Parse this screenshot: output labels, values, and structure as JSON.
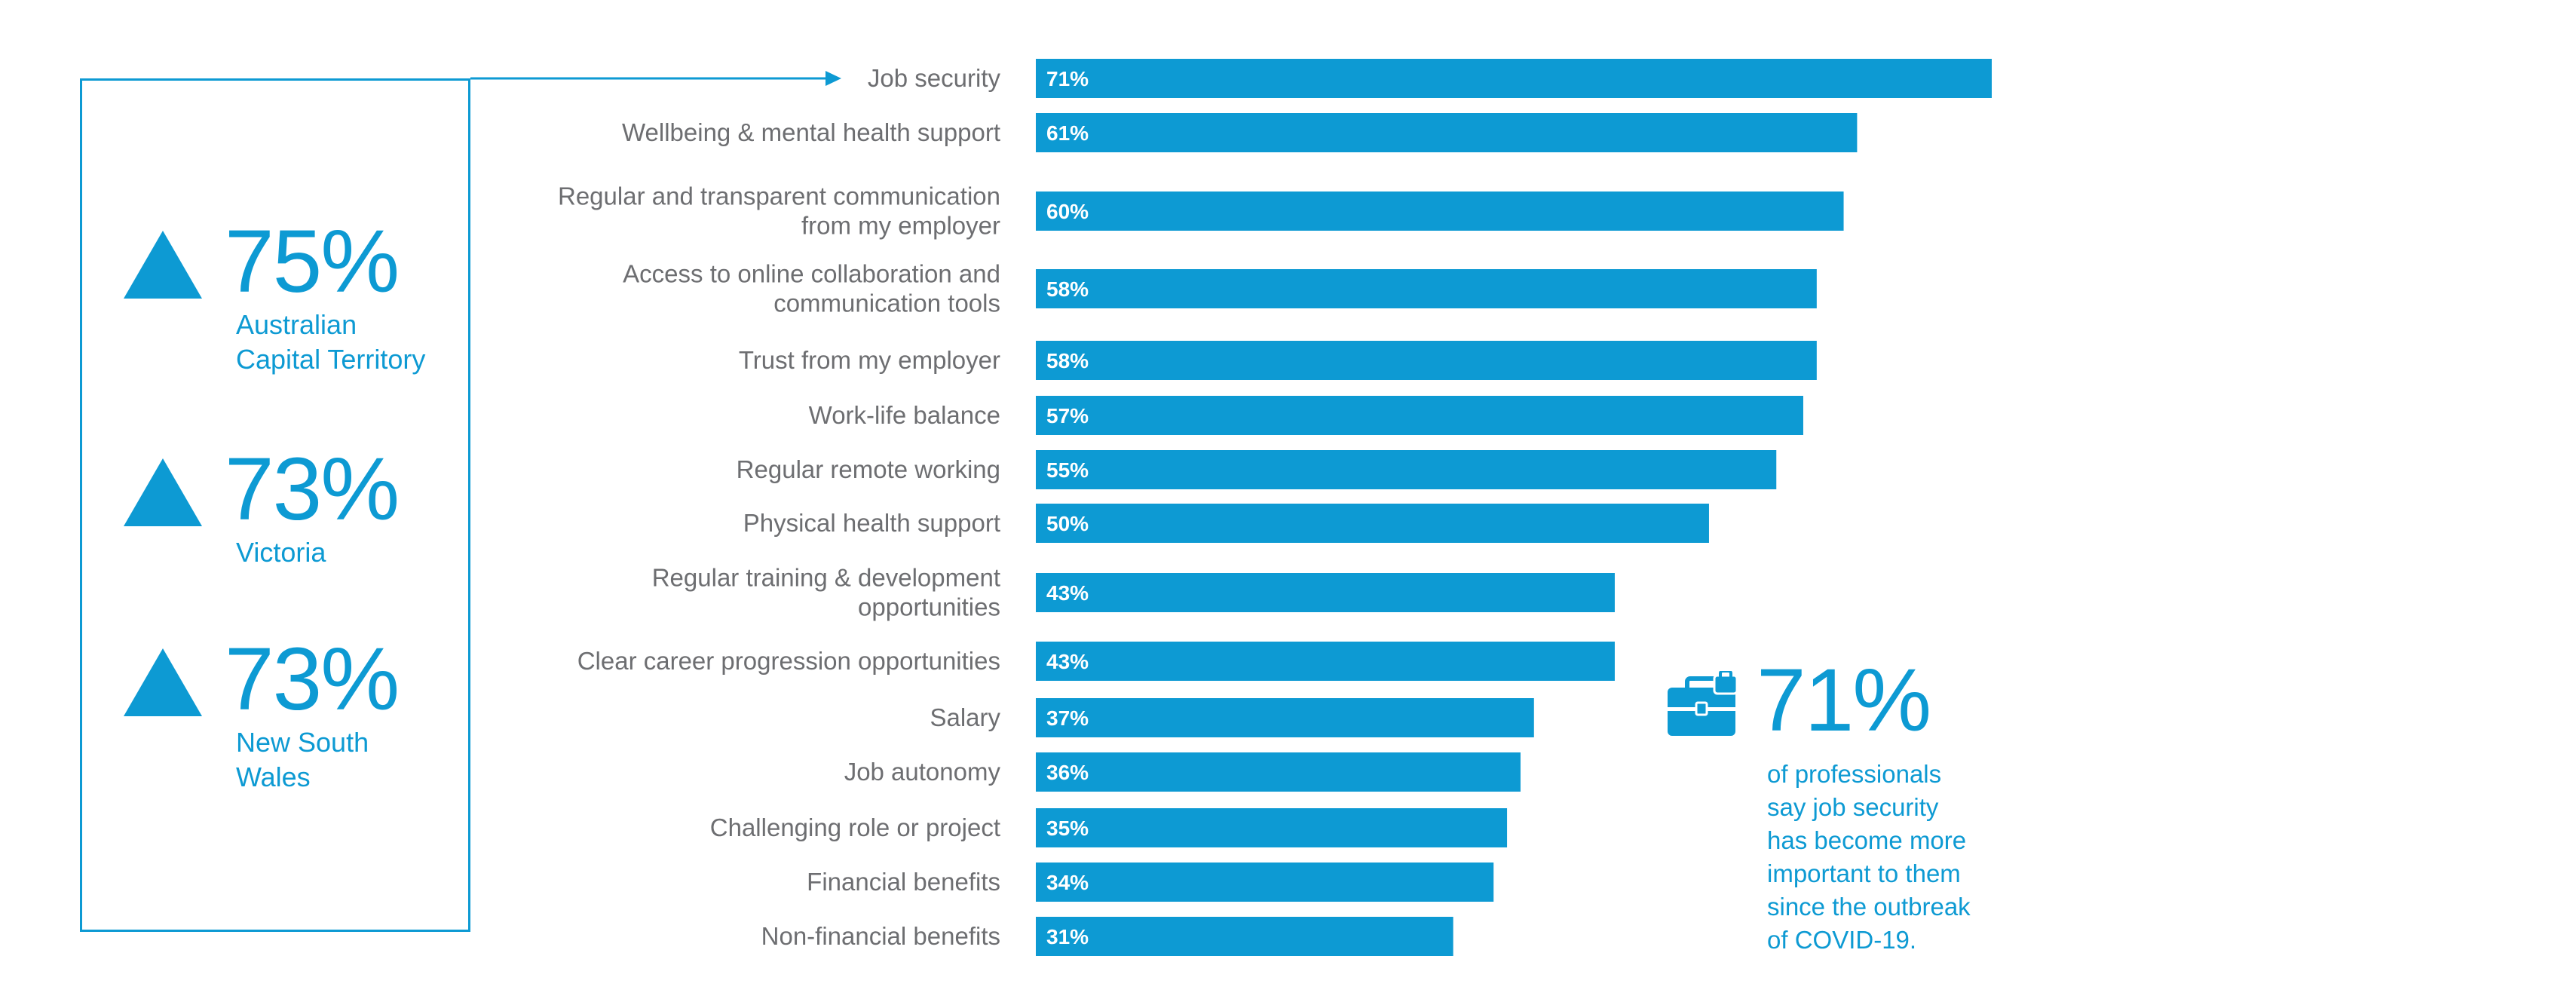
{
  "regions": [
    {
      "pct": "75%",
      "name_lines": [
        "Australian",
        "Capital Territory"
      ]
    },
    {
      "pct": "73%",
      "name_lines": [
        "Victoria"
      ]
    },
    {
      "pct": "73%",
      "name_lines": [
        "New South",
        "Wales"
      ]
    }
  ],
  "callout": {
    "pct": "71%",
    "text_lines": [
      "of professionals",
      "say job security",
      "has become more",
      "important to them",
      "since the outbreak",
      "of COVID-19."
    ],
    "icon": "briefcase-icon"
  },
  "colors": {
    "accent": "#0d9ad3",
    "label": "#6d6e71",
    "bar_text": "#ffffff"
  },
  "chart_data": {
    "type": "bar",
    "orientation": "horizontal",
    "categories": [
      [
        "Job security"
      ],
      [
        "Wellbeing & mental health support"
      ],
      [
        "Regular and transparent communication",
        "from my employer"
      ],
      [
        "Access to online collaboration and",
        "communication tools"
      ],
      [
        "Trust from my employer"
      ],
      [
        "Work-life balance"
      ],
      [
        "Regular remote working"
      ],
      [
        "Physical health support"
      ],
      [
        "Regular training & development",
        "opportunities"
      ],
      [
        "Clear career progression opportunities"
      ],
      [
        "Salary"
      ],
      [
        "Job autonomy"
      ],
      [
        "Challenging role or project"
      ],
      [
        "Financial benefits"
      ],
      [
        "Non-financial benefits"
      ]
    ],
    "values": [
      71,
      61,
      60,
      58,
      58,
      57,
      55,
      50,
      43,
      43,
      37,
      36,
      35,
      34,
      31
    ],
    "value_labels": [
      "71%",
      "61%",
      "60%",
      "58%",
      "58%",
      "57%",
      "55%",
      "50%",
      "43%",
      "43%",
      "37%",
      "36%",
      "35%",
      "34%",
      "31%"
    ],
    "xlim": [
      0,
      71
    ],
    "grid": false,
    "legend": "none",
    "bar_color": "#0d9ad3"
  }
}
